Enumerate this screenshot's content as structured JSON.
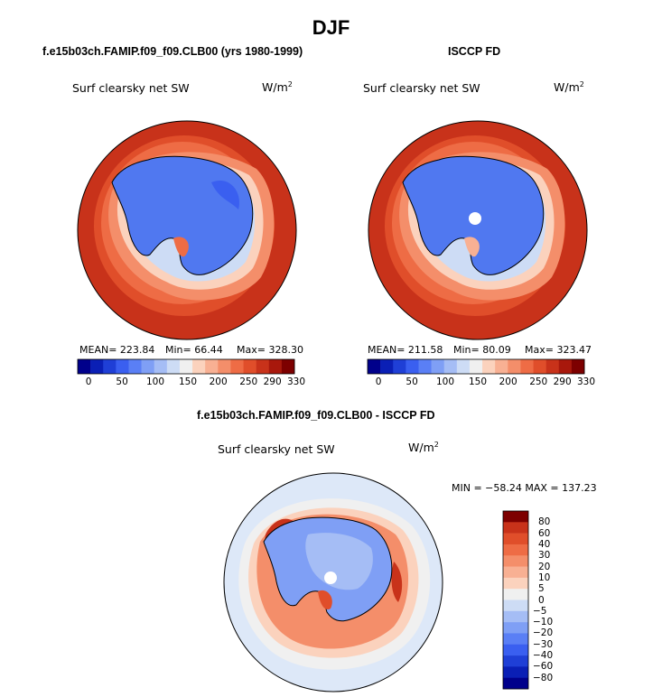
{
  "figure": {
    "season": "DJF",
    "left_title": "f.e15b03ch.FAMIP.f09_f09.CLB00 (yrs 1980-1999)",
    "right_title": "ISCCP FD",
    "diff_title": "f.e15b03ch.FAMIP.f09_f09.CLB00 - ISCCP FD",
    "variable": "Surf clearsky net SW",
    "units_base": "W/m",
    "units_exp": "2"
  },
  "colors": {
    "abs_scale": [
      "#00008b",
      "#0a1fb5",
      "#1f3fd6",
      "#3a5ff0",
      "#5a7ff5",
      "#7f9ff5",
      "#a5bdf5",
      "#cddcf5",
      "#f0f0f0",
      "#fbd2bd",
      "#f8b093",
      "#f48e6a",
      "#ee6c45",
      "#e04e2a",
      "#c8321a",
      "#a8180c",
      "#7d0000"
    ],
    "diff_scale": [
      "#00008b",
      "#0a1fb5",
      "#1f3fd6",
      "#3a5ff0",
      "#5a7ff5",
      "#7f9ff5",
      "#a5bdf5",
      "#cddcf5",
      "#f0f0f0",
      "#fbd2bd",
      "#f8b093",
      "#f48e6a",
      "#ee6c45",
      "#e04e2a",
      "#c8321a",
      "#7d0000"
    ],
    "ocean_outer": "#c8321a",
    "antarctica": "#5078f0"
  },
  "chart_data": [
    {
      "type": "heatmap",
      "projection": "south-polar-stereographic",
      "title": "f.e15b03ch.FAMIP.f09_f09.CLB00 (yrs 1980-1999)",
      "subtitle": "Surf clearsky net SW",
      "units": "W/m2",
      "stats": {
        "mean": "223.84",
        "min": "66.44",
        "max": "328.30"
      },
      "stats_text": {
        "mean": "MEAN= 223.84",
        "min": "Min=  66.44",
        "max": "Max= 328.30"
      },
      "colorbar_levels": [
        "0",
        "50",
        "100",
        "150",
        "200",
        "250",
        "290",
        "330"
      ],
      "legend": "bottom"
    },
    {
      "type": "heatmap",
      "projection": "south-polar-stereographic",
      "title": "ISCCP FD",
      "subtitle": "Surf clearsky net SW",
      "units": "W/m2",
      "stats": {
        "mean": "211.58",
        "min": "80.09",
        "max": "323.47"
      },
      "stats_text": {
        "mean": "MEAN= 211.58",
        "min": "Min=  80.09",
        "max": "Max= 323.47"
      },
      "colorbar_levels": [
        "0",
        "50",
        "100",
        "150",
        "200",
        "250",
        "290",
        "330"
      ],
      "legend": "bottom"
    },
    {
      "type": "heatmap",
      "projection": "south-polar-stereographic",
      "title": "f.e15b03ch.FAMIP.f09_f09.CLB00 - ISCCP FD",
      "subtitle": "Surf clearsky net SW",
      "units": "W/m2",
      "stats": {
        "min": "-58.24",
        "max": "137.23"
      },
      "stats_text": "MIN = −58.24 MAX = 137.23",
      "colorbar_levels": [
        "80",
        "60",
        "40",
        "30",
        "20",
        "10",
        "5",
        "0",
        "−5",
        "−10",
        "−20",
        "−30",
        "−40",
        "−60",
        "−80"
      ],
      "legend": "right"
    }
  ]
}
